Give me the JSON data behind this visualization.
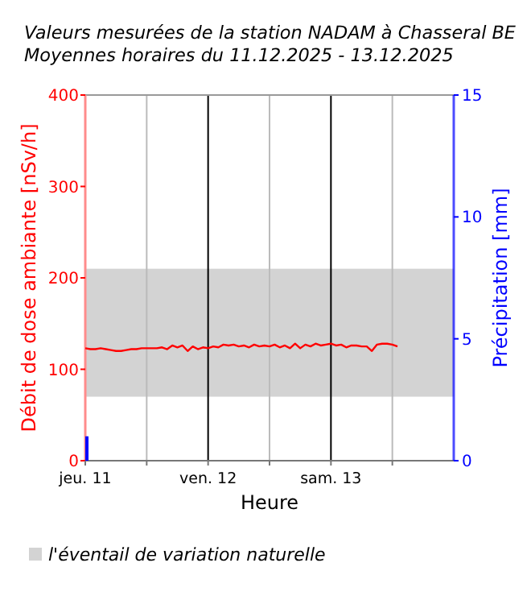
{
  "chart_data": {
    "type": "line",
    "title": "Valeurs mesurées de la station NADAM à Chasseral BE",
    "subtitle": "Moyennes horaires du 11.12.2025 - 13.12.2025",
    "xlabel": "Heure",
    "ylabel": "Débit de dose ambiante [nSv/h]",
    "y2label": "Précipitation [mm]",
    "xlim": [
      "2025-12-11T00:00",
      "2025-12-14T00:00"
    ],
    "xticks": [
      {
        "value": "2025-12-11T00:00",
        "label": "jeu. 11"
      },
      {
        "value": "2025-12-11T12:00",
        "label": null
      },
      {
        "value": "2025-12-12T00:00",
        "label": "ven. 12"
      },
      {
        "value": "2025-12-12T12:00",
        "label": null
      },
      {
        "value": "2025-12-13T00:00",
        "label": "sam. 13"
      },
      {
        "value": "2025-12-13T12:00",
        "label": null
      }
    ],
    "ylim": [
      0,
      400
    ],
    "yticks": [
      0,
      100,
      200,
      300,
      400
    ],
    "y2lim": [
      0,
      15
    ],
    "y2ticks": [
      0,
      5,
      10,
      15
    ],
    "grid": "x",
    "legend": "bottom",
    "bands": [
      {
        "axis": "y",
        "from": 70,
        "to": 210,
        "label": "l'éventail de variation naturelle",
        "color": "#d3d3d3"
      }
    ],
    "series": [
      {
        "color": "#ff0000",
        "x": [
          "2025-12-11T00:00",
          "2025-12-11T01:00",
          "2025-12-11T02:00",
          "2025-12-11T03:00",
          "2025-12-11T04:00",
          "2025-12-11T05:00",
          "2025-12-11T06:00",
          "2025-12-11T07:00",
          "2025-12-11T08:00",
          "2025-12-11T09:00",
          "2025-12-11T10:00",
          "2025-12-11T11:00",
          "2025-12-11T12:00",
          "2025-12-11T14:00",
          "2025-12-11T15:00",
          "2025-12-11T16:00",
          "2025-12-11T17:00",
          "2025-12-11T18:00",
          "2025-12-11T19:00",
          "2025-12-11T20:00",
          "2025-12-11T21:00",
          "2025-12-11T22:00",
          "2025-12-11T23:00",
          "2025-12-12T00:00",
          "2025-12-12T01:00",
          "2025-12-12T02:00",
          "2025-12-12T03:00",
          "2025-12-12T04:00",
          "2025-12-12T05:00",
          "2025-12-12T06:00",
          "2025-12-12T07:00",
          "2025-12-12T08:00",
          "2025-12-12T09:00",
          "2025-12-12T10:00",
          "2025-12-12T11:00",
          "2025-12-12T12:00",
          "2025-12-12T13:00",
          "2025-12-12T14:00",
          "2025-12-12T15:00",
          "2025-12-12T16:00",
          "2025-12-12T17:00",
          "2025-12-12T18:00",
          "2025-12-12T19:00",
          "2025-12-12T20:00",
          "2025-12-12T21:00",
          "2025-12-12T22:00",
          "2025-12-12T23:00",
          "2025-12-13T00:00",
          "2025-12-13T01:00",
          "2025-12-13T02:00",
          "2025-12-13T03:00",
          "2025-12-13T04:00",
          "2025-12-13T05:00",
          "2025-12-13T06:00",
          "2025-12-13T07:00",
          "2025-12-13T08:00",
          "2025-12-13T09:00",
          "2025-12-13T10:00",
          "2025-12-13T11:00",
          "2025-12-13T12:00",
          "2025-12-13T13:00"
        ],
        "values": [
          123,
          122,
          122,
          123,
          122,
          121,
          120,
          120,
          121,
          122,
          122,
          123,
          123,
          123,
          124,
          122,
          126,
          124,
          126,
          120,
          125,
          122,
          124,
          123,
          125,
          124,
          127,
          126,
          127,
          125,
          126,
          124,
          127,
          125,
          126,
          125,
          127,
          124,
          126,
          123,
          128,
          123,
          127,
          125,
          128,
          126,
          127,
          128,
          126,
          127,
          124,
          126,
          126,
          125,
          125,
          120,
          127,
          128,
          128,
          127,
          125
        ]
      },
      {
        "type": "bar",
        "axis": "y2",
        "color": "#0000ff",
        "x": [
          "2025-12-11T00:00"
        ],
        "values": [
          1
        ]
      }
    ]
  }
}
